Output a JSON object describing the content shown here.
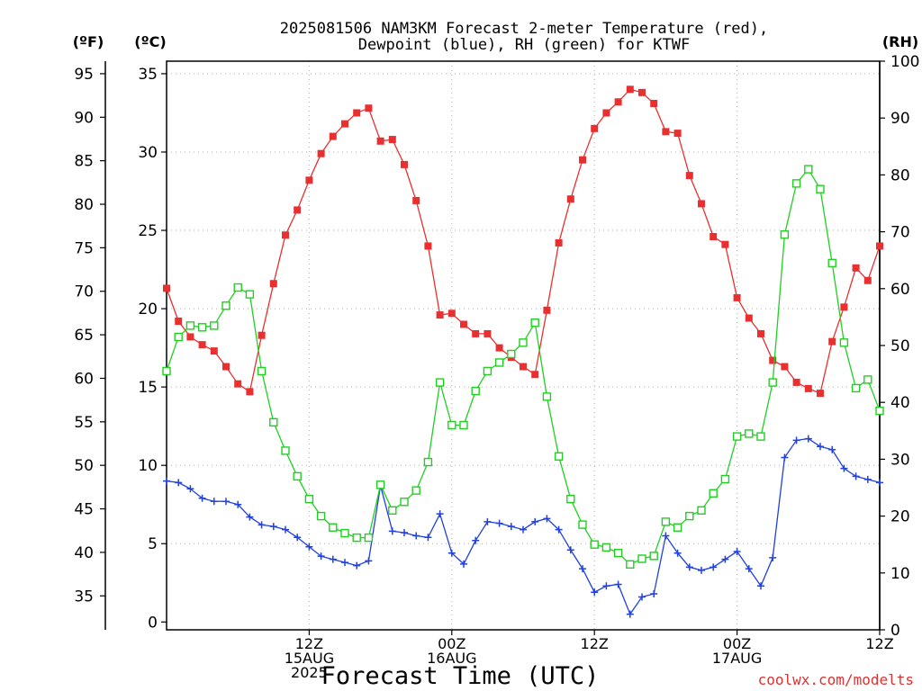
{
  "header": {
    "title_line1": "2025081506 NAM3KM Forecast 2-meter Temperature (red),",
    "title_line2": "Dewpoint (blue), RH (green) for KTWF"
  },
  "units": {
    "fahrenheit": "(ºF)",
    "celsius": "(ºC)",
    "rh": "(RH)"
  },
  "xaxis_title": "Forecast Time (UTC)",
  "credit": "coolwx.com/modelts",
  "x_ticks": [
    {
      "hour": 12,
      "lines": [
        "12Z",
        "15AUG",
        "2025"
      ]
    },
    {
      "hour": 24,
      "lines": [
        "00Z",
        "16AUG"
      ]
    },
    {
      "hour": 36,
      "lines": [
        "12Z"
      ]
    },
    {
      "hour": 48,
      "lines": [
        "00Z",
        "17AUG"
      ]
    },
    {
      "hour": 60,
      "lines": [
        "12Z"
      ]
    }
  ],
  "chart_data": {
    "type": "line",
    "x_unit": "forecast hour since 2025081506 UTC",
    "x": [
      0,
      1,
      2,
      3,
      4,
      5,
      6,
      7,
      8,
      9,
      10,
      11,
      12,
      13,
      14,
      15,
      16,
      17,
      18,
      19,
      20,
      21,
      22,
      23,
      24,
      25,
      26,
      27,
      28,
      29,
      30,
      31,
      32,
      33,
      34,
      35,
      36,
      37,
      38,
      39,
      40,
      41,
      42,
      43,
      44,
      45,
      46,
      47,
      48,
      49,
      50,
      51,
      52,
      53,
      54,
      55,
      56,
      57,
      58,
      59,
      60
    ],
    "xlim": [
      0,
      60
    ],
    "ylim_celsius": [
      -0.5,
      35.8
    ],
    "y_ticks_celsius": [
      0,
      5,
      10,
      15,
      20,
      25,
      30,
      35
    ],
    "y_ticks_fahrenheit": [
      35,
      40,
      45,
      50,
      55,
      60,
      65,
      70,
      75,
      80,
      85,
      90,
      95
    ],
    "ylim_rh": [
      0,
      100
    ],
    "y_ticks_rh": [
      0,
      10,
      20,
      30,
      40,
      50,
      60,
      70,
      80,
      90,
      100
    ],
    "grid": true,
    "series": [
      {
        "name": "2-meter Temperature",
        "color": "#e83030",
        "marker": "filled-square",
        "axis": "celsius",
        "values": [
          21.3,
          19.2,
          18.2,
          17.7,
          17.3,
          16.3,
          15.2,
          14.7,
          18.3,
          21.6,
          24.7,
          26.3,
          28.2,
          29.9,
          31.0,
          31.8,
          32.5,
          32.8,
          30.7,
          30.8,
          29.2,
          26.9,
          24.0,
          19.6,
          19.7,
          19.0,
          18.4,
          18.4,
          17.5,
          16.9,
          16.3,
          15.8,
          19.9,
          24.2,
          27.0,
          29.5,
          31.5,
          32.5,
          33.2,
          34.0,
          33.8,
          33.1,
          31.3,
          31.2,
          28.5,
          26.7,
          24.6,
          24.1,
          20.7,
          19.4,
          18.4,
          16.7,
          16.3,
          15.3,
          14.9,
          14.6,
          17.9,
          20.1,
          22.6,
          21.8,
          24.0
        ]
      },
      {
        "name": "Dewpoint",
        "color": "#2040e0",
        "marker": "plus",
        "axis": "celsius",
        "values": [
          9.0,
          8.9,
          8.5,
          7.9,
          7.7,
          7.7,
          7.5,
          6.7,
          6.2,
          6.1,
          5.9,
          5.4,
          4.8,
          4.2,
          4.0,
          3.8,
          3.6,
          3.9,
          8.7,
          5.8,
          5.7,
          5.5,
          5.4,
          6.9,
          4.4,
          3.7,
          5.2,
          6.4,
          6.3,
          6.1,
          5.9,
          6.4,
          6.6,
          5.9,
          4.6,
          3.4,
          1.9,
          2.3,
          2.4,
          0.5,
          1.6,
          1.8,
          5.5,
          4.4,
          3.5,
          3.3,
          3.5,
          4.0,
          4.5,
          3.4,
          2.3,
          4.1,
          10.5,
          11.6,
          11.7,
          11.2,
          11.0,
          9.8,
          9.3,
          9.1,
          8.9
        ]
      },
      {
        "name": "RH",
        "color": "#20d020",
        "marker": "open-square",
        "axis": "rh",
        "values": [
          45.5,
          51.5,
          53.5,
          53.2,
          53.5,
          57.0,
          60.2,
          59.0,
          45.5,
          36.5,
          31.5,
          27.0,
          23.0,
          20.0,
          18.0,
          17.0,
          16.2,
          16.2,
          25.5,
          21.0,
          22.5,
          24.5,
          29.5,
          43.5,
          36.0,
          36.0,
          42.0,
          45.5,
          47.0,
          48.5,
          50.5,
          54.0,
          41.0,
          30.5,
          23.0,
          18.5,
          15.0,
          14.5,
          13.5,
          11.5,
          12.5,
          13.0,
          19.0,
          18.0,
          20.0,
          21.0,
          24.0,
          26.5,
          34.0,
          34.5,
          34.0,
          43.5,
          69.5,
          78.5,
          81.0,
          77.5,
          64.5,
          50.5,
          42.5,
          44.0,
          38.5
        ]
      }
    ]
  }
}
